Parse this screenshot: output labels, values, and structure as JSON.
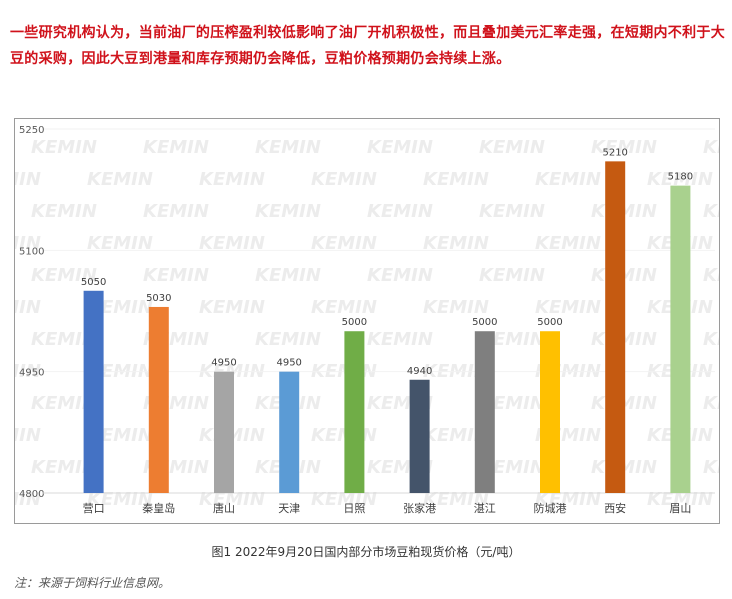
{
  "article": {
    "intro_text": "一些研究机构认为，当前油厂的压榨盈利较低影响了油厂开机积极性，而且叠加美元汇率走强，在短期内不利于大豆的采购，因此大豆到港量和库存预期仍会降低，豆粕价格预期仍会持续上涨。",
    "figure_caption": "图1  2022年9月20日国内部分市场豆粕现货价格（元/吨）",
    "source_note": "注：来源于饲料行业信息网。"
  },
  "watermark": {
    "text": "KEMIN"
  },
  "chart_data": {
    "type": "bar",
    "title": "",
    "xlabel": "",
    "ylabel": "",
    "ylim": [
      4800,
      5250
    ],
    "yticks": [
      4800,
      4950,
      5100,
      5250
    ],
    "grid": false,
    "legend": "none",
    "categories": [
      "营口",
      "秦皇岛",
      "唐山",
      "天津",
      "日照",
      "张家港",
      "湛江",
      "防城港",
      "西安",
      "眉山"
    ],
    "values": [
      5050,
      5030,
      4950,
      4950,
      5000,
      4940,
      5000,
      5000,
      5210,
      5180
    ],
    "colors": [
      "#4472c4",
      "#ed7d31",
      "#a5a5a5",
      "#5b9bd5",
      "#70ad47",
      "#44546a",
      "#7f7f7f",
      "#ffc000",
      "#c55a11",
      "#a9d18e"
    ],
    "data_labels": [
      "5050",
      "5030",
      "4950",
      "4950",
      "5000",
      "4940",
      "5000",
      "5000",
      "5210",
      "5180"
    ]
  }
}
